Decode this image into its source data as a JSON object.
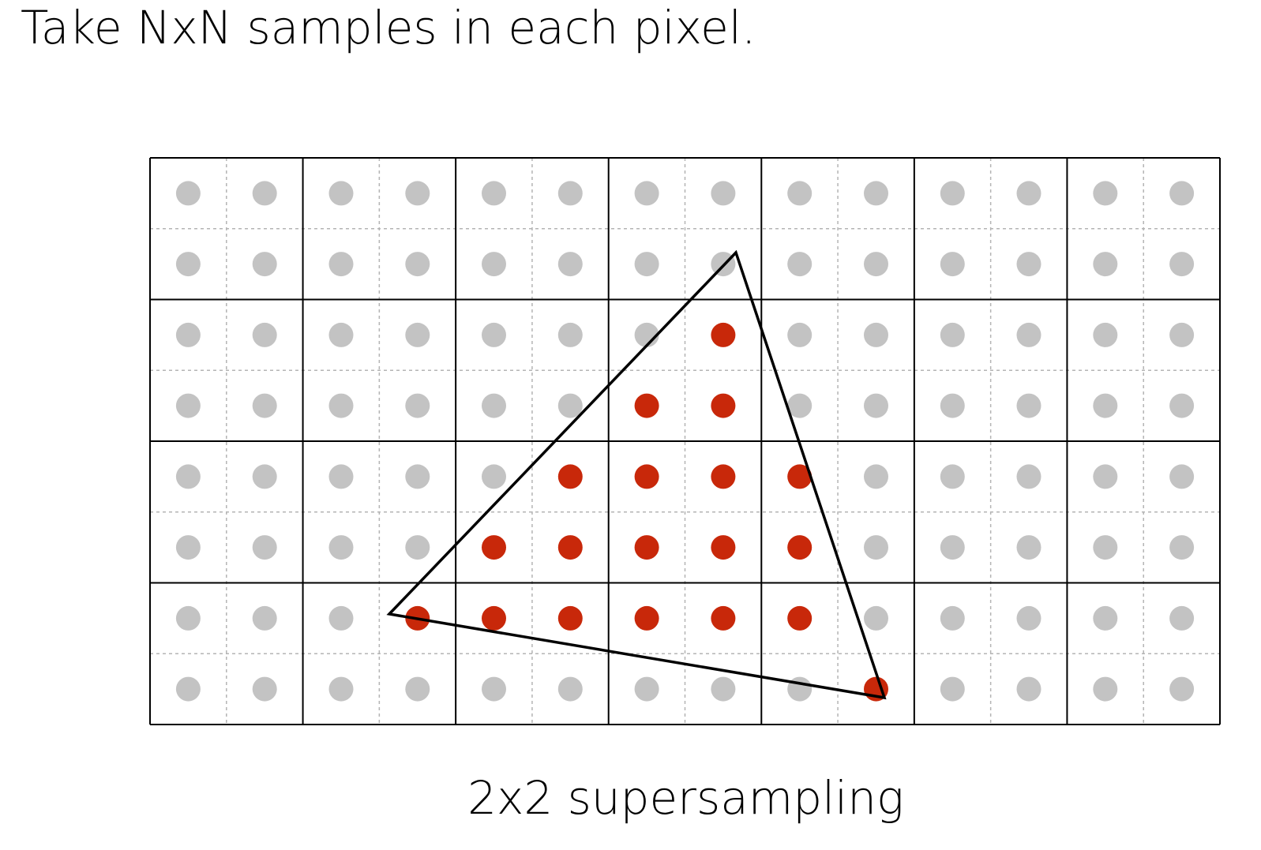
{
  "heading": "Take NxN samples in each pixel.",
  "caption": "2x2 supersampling",
  "grid": {
    "pixel_cols": 7,
    "pixel_rows": 4,
    "samples_per_pixel": "2x2"
  },
  "colors": {
    "sample_outside": "#c3c3c3",
    "sample_inside": "#c8280a",
    "pixel_line": "#000000",
    "subpixel_line": "#b4b4b4",
    "triangle_stroke": "#000000"
  },
  "covered_samples": [
    [
      2,
      7
    ],
    [
      3,
      6
    ],
    [
      3,
      7
    ],
    [
      4,
      5
    ],
    [
      4,
      6
    ],
    [
      4,
      7
    ],
    [
      4,
      8
    ],
    [
      5,
      4
    ],
    [
      5,
      5
    ],
    [
      5,
      6
    ],
    [
      5,
      7
    ],
    [
      5,
      8
    ],
    [
      6,
      3
    ],
    [
      6,
      4
    ],
    [
      6,
      5
    ],
    [
      6,
      6
    ],
    [
      6,
      7
    ],
    [
      6,
      8
    ],
    [
      7,
      9
    ]
  ]
}
